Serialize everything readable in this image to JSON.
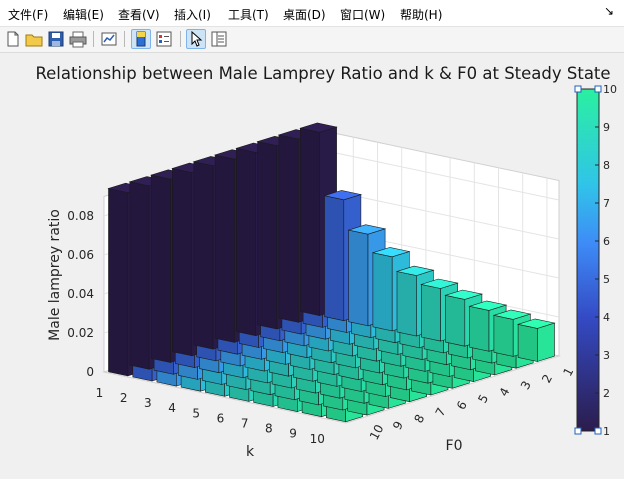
{
  "menu": {
    "items": [
      "文件(F)",
      "编辑(E)",
      "查看(V)",
      "插入(I)",
      "工具(T)",
      "桌面(D)",
      "窗口(W)",
      "帮助(H)"
    ],
    "dock_arrow": "↘"
  },
  "toolbar": {
    "buttons": [
      "new-figure-icon",
      "open-folder-icon",
      "save-icon",
      "print-icon",
      "link-plot-icon",
      "insert-colorbar-icon",
      "insert-legend-icon",
      "edit-plot-arrow-icon",
      "property-inspector-icon"
    ],
    "active": [
      "insert-colorbar-icon",
      "edit-plot-arrow-icon"
    ]
  },
  "chart_data": {
    "type": "bar3",
    "title": "Relationship between Male Lamprey Ratio and k & F0 at Steady State",
    "xlabel": "k",
    "ylabel": "F0",
    "zlabel": "Male lamprey ratio",
    "k": [
      1,
      2,
      3,
      4,
      5,
      6,
      7,
      8,
      9,
      10
    ],
    "F0": [
      1,
      2,
      3,
      4,
      5,
      6,
      7,
      8,
      9,
      10
    ],
    "zlim": [
      0,
      0.09
    ],
    "zticks": [
      "0",
      "0.02",
      "0.04",
      "0.06",
      "0.08"
    ],
    "values_by_k": [
      0.094,
      0.062,
      0.047,
      0.038,
      0.031,
      0.027,
      0.024,
      0.021,
      0.019,
      0.017
    ],
    "values_note_varies_with": "k",
    "colorbar": {
      "min": 1,
      "max": 10,
      "ticks": [
        "1",
        "2",
        "3",
        "4",
        "5",
        "6",
        "7",
        "8",
        "9",
        "10"
      ],
      "colormap": "parula-like"
    },
    "colors": {
      "low": "#2b1c4c",
      "mid": "#3f8cf7",
      "high": "#29f0a0"
    }
  }
}
